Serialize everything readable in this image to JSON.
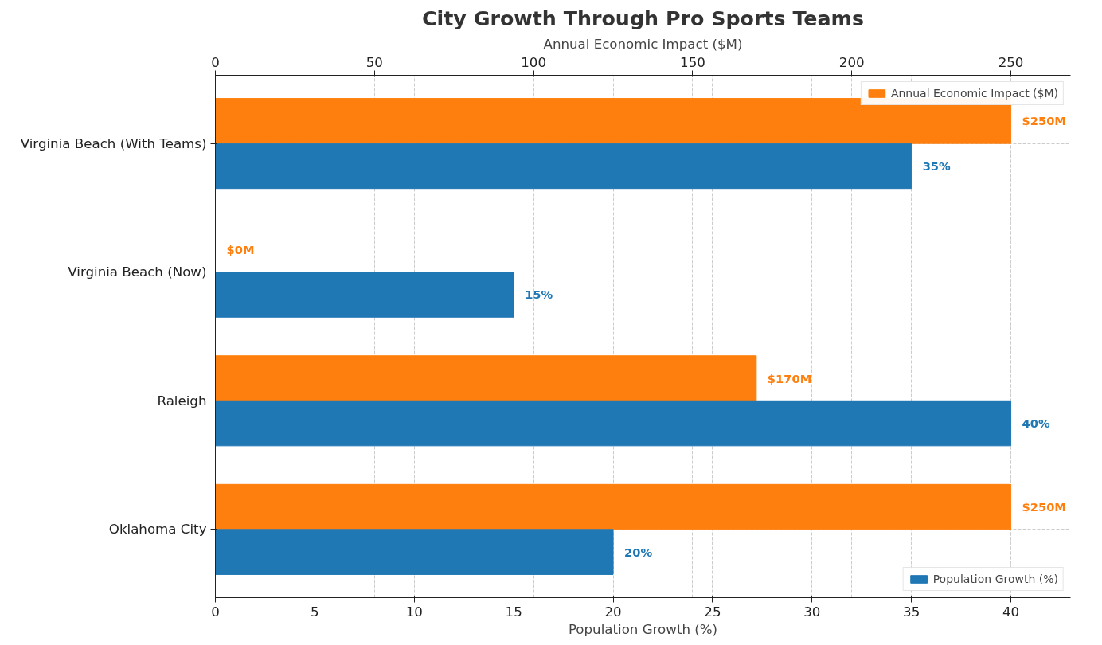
{
  "chart_data": {
    "type": "bar",
    "orientation": "horizontal",
    "title": "City Growth Through Pro Sports Teams",
    "categories": [
      "Virginia Beach (With Teams)",
      "Virginia Beach (Now)",
      "Raleigh",
      "Oklahoma City"
    ],
    "xlabel": "Population Growth (%)",
    "x2label": "Annual Economic Impact ($M)",
    "xlim": [
      0,
      43
    ],
    "xticks": [
      0,
      5,
      10,
      15,
      20,
      25,
      30,
      35,
      40
    ],
    "x2lim": [
      0,
      268.75
    ],
    "x2ticks": [
      0,
      50,
      100,
      150,
      200,
      250
    ],
    "series": [
      {
        "name": "Annual Economic Impact ($M)",
        "color": "#ff7f0e",
        "axis": "x2",
        "values": [
          250,
          0,
          170,
          250
        ],
        "value_labels": [
          "$250M",
          "$0M",
          "$170M",
          "$250M"
        ]
      },
      {
        "name": "Population Growth (%)",
        "color": "#1f77b4",
        "values": [
          35,
          15,
          40,
          20
        ],
        "value_labels": [
          "35%",
          "15%",
          "40%",
          "20%"
        ]
      }
    ],
    "grid": true,
    "legend": "right"
  }
}
